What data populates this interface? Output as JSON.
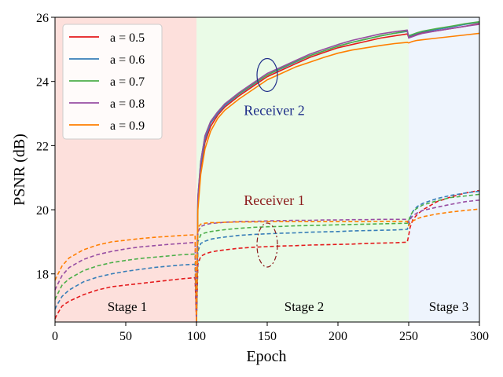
{
  "chart_data": {
    "type": "line",
    "title": "",
    "xlabel": "Epoch",
    "ylabel": "PSNR (dB)",
    "xlim": [
      0,
      300
    ],
    "ylim": [
      16.5,
      26
    ],
    "xticks": [
      0,
      50,
      100,
      150,
      200,
      250,
      300
    ],
    "yticks": [
      18,
      20,
      22,
      24,
      26
    ],
    "legend_position": "top-left",
    "stages": [
      {
        "name": "Stage 1",
        "range": [
          0,
          100
        ],
        "color": "#fde0dc"
      },
      {
        "name": "Stage 2",
        "range": [
          100,
          250
        ],
        "color": "#eafbe7"
      },
      {
        "name": "Stage 3",
        "range": [
          250,
          300
        ],
        "color": "#eef4fd"
      }
    ],
    "annotations": [
      {
        "text": "Receiver 2",
        "color": "#1f2f8a",
        "x": 150,
        "y": 23.1
      },
      {
        "text": "Receiver 1",
        "color": "#8b1a1a",
        "x": 150,
        "y": 20.3
      }
    ],
    "ellipses": [
      {
        "name": "receiver-2-ellipse",
        "cx": 150,
        "cy": 24.2,
        "color": "#1f2f8a",
        "style": "solid"
      },
      {
        "name": "receiver-1-ellipse",
        "cx": 150,
        "cy": 18.9,
        "color": "#8b1a1a",
        "style": "dashdot"
      }
    ],
    "x": [
      0,
      1,
      5,
      10,
      20,
      30,
      40,
      50,
      60,
      70,
      80,
      90,
      99,
      100,
      101,
      103,
      106,
      110,
      115,
      120,
      130,
      140,
      150,
      160,
      170,
      180,
      190,
      200,
      210,
      220,
      230,
      240,
      249,
      250,
      251,
      253,
      256,
      260,
      270,
      280,
      290,
      300
    ],
    "series": [
      {
        "name": "a = 0.5",
        "color": "#e41a1c",
        "receiver": 2,
        "values": [
          null,
          null,
          null,
          null,
          null,
          null,
          null,
          null,
          null,
          null,
          null,
          null,
          null,
          16.5,
          20.2,
          21.3,
          22.1,
          22.6,
          22.95,
          23.2,
          23.55,
          23.85,
          24.15,
          24.35,
          24.55,
          24.75,
          24.9,
          25.05,
          25.15,
          25.25,
          25.35,
          25.42,
          25.48,
          25.38,
          25.4,
          25.43,
          25.48,
          25.52,
          25.58,
          25.65,
          25.72,
          25.8
        ]
      },
      {
        "name": "a = 0.6",
        "color": "#377eb8",
        "receiver": 2,
        "values": [
          null,
          null,
          null,
          null,
          null,
          null,
          null,
          null,
          null,
          null,
          null,
          null,
          null,
          16.5,
          20.3,
          21.4,
          22.2,
          22.7,
          23.0,
          23.25,
          23.6,
          23.9,
          24.2,
          24.4,
          24.6,
          24.8,
          24.95,
          25.1,
          25.22,
          25.32,
          25.42,
          25.5,
          25.56,
          25.4,
          25.42,
          25.45,
          25.5,
          25.55,
          25.62,
          25.7,
          25.78,
          25.84
        ]
      },
      {
        "name": "a = 0.7",
        "color": "#4daf4a",
        "receiver": 2,
        "values": [
          null,
          null,
          null,
          null,
          null,
          null,
          null,
          null,
          null,
          null,
          null,
          null,
          null,
          16.5,
          20.4,
          21.5,
          22.3,
          22.75,
          23.05,
          23.3,
          23.62,
          23.92,
          24.2,
          24.42,
          24.62,
          24.8,
          24.95,
          25.1,
          25.22,
          25.32,
          25.42,
          25.5,
          25.58,
          25.42,
          25.44,
          25.47,
          25.52,
          25.57,
          25.65,
          25.72,
          25.8,
          25.86
        ]
      },
      {
        "name": "a = 0.8",
        "color": "#984ea3",
        "receiver": 2,
        "values": [
          null,
          null,
          null,
          null,
          null,
          null,
          null,
          null,
          null,
          null,
          null,
          null,
          null,
          16.5,
          20.4,
          21.5,
          22.3,
          22.75,
          23.05,
          23.3,
          23.65,
          23.95,
          24.25,
          24.45,
          24.65,
          24.85,
          25.0,
          25.15,
          25.28,
          25.38,
          25.48,
          25.55,
          25.6,
          25.35,
          25.37,
          25.4,
          25.45,
          25.5,
          25.58,
          25.65,
          25.72,
          25.78
        ]
      },
      {
        "name": "a = 0.9",
        "color": "#ff7f00",
        "receiver": 2,
        "values": [
          null,
          null,
          null,
          null,
          null,
          null,
          null,
          null,
          null,
          null,
          null,
          null,
          null,
          16.5,
          20.0,
          21.1,
          21.9,
          22.45,
          22.85,
          23.1,
          23.45,
          23.75,
          24.05,
          24.25,
          24.45,
          24.6,
          24.75,
          24.88,
          24.98,
          25.05,
          25.12,
          25.18,
          25.22,
          25.2,
          25.22,
          25.25,
          25.28,
          25.3,
          25.35,
          25.4,
          25.45,
          25.5
        ]
      },
      {
        "name": "a = 0.5",
        "color": "#e41a1c",
        "receiver": 1,
        "values": [
          16.6,
          16.7,
          17.0,
          17.15,
          17.35,
          17.5,
          17.6,
          17.65,
          17.7,
          17.75,
          17.8,
          17.85,
          17.88,
          16.5,
          18.3,
          18.55,
          18.62,
          18.68,
          18.72,
          18.75,
          18.8,
          18.83,
          18.85,
          18.87,
          18.88,
          18.9,
          18.91,
          18.92,
          18.93,
          18.95,
          18.96,
          18.97,
          18.99,
          19.2,
          19.45,
          19.7,
          19.85,
          20.0,
          20.25,
          20.4,
          20.52,
          20.6
        ]
      },
      {
        "name": "a = 0.6",
        "color": "#377eb8",
        "receiver": 1,
        "values": [
          16.9,
          17.0,
          17.3,
          17.5,
          17.75,
          17.9,
          18.0,
          18.08,
          18.14,
          18.2,
          18.24,
          18.28,
          18.3,
          16.5,
          18.7,
          18.95,
          19.02,
          19.08,
          19.12,
          19.15,
          19.2,
          19.23,
          19.25,
          19.27,
          19.28,
          19.3,
          19.31,
          19.32,
          19.34,
          19.35,
          19.36,
          19.37,
          19.39,
          19.55,
          19.75,
          19.95,
          20.1,
          20.2,
          20.35,
          20.45,
          20.52,
          20.58
        ]
      },
      {
        "name": "a = 0.7",
        "color": "#4daf4a",
        "receiver": 1,
        "values": [
          17.2,
          17.3,
          17.65,
          17.85,
          18.1,
          18.25,
          18.35,
          18.42,
          18.48,
          18.52,
          18.56,
          18.6,
          18.62,
          16.5,
          19.0,
          19.22,
          19.28,
          19.32,
          19.35,
          19.38,
          19.42,
          19.45,
          19.47,
          19.48,
          19.5,
          19.51,
          19.52,
          19.53,
          19.54,
          19.55,
          19.56,
          19.57,
          19.58,
          19.65,
          19.8,
          19.95,
          20.05,
          20.15,
          20.28,
          20.38,
          20.43,
          20.48
        ]
      },
      {
        "name": "a = 0.8",
        "color": "#984ea3",
        "receiver": 1,
        "values": [
          17.5,
          17.6,
          17.95,
          18.2,
          18.45,
          18.6,
          18.7,
          18.78,
          18.84,
          18.88,
          18.92,
          18.95,
          18.98,
          16.5,
          19.3,
          19.48,
          19.53,
          19.57,
          19.59,
          19.61,
          19.63,
          19.64,
          19.65,
          19.66,
          19.67,
          19.67,
          19.68,
          19.68,
          19.69,
          19.69,
          19.7,
          19.7,
          19.7,
          19.6,
          19.7,
          19.82,
          19.9,
          19.98,
          20.08,
          20.17,
          20.25,
          20.3
        ]
      },
      {
        "name": "a = 0.9",
        "color": "#ff7f00",
        "receiver": 1,
        "values": [
          17.8,
          17.9,
          18.25,
          18.5,
          18.75,
          18.9,
          19.0,
          19.05,
          19.1,
          19.14,
          19.17,
          19.2,
          19.22,
          16.5,
          19.45,
          19.55,
          19.58,
          19.6,
          19.6,
          19.61,
          19.62,
          19.62,
          19.63,
          19.63,
          19.63,
          19.63,
          19.63,
          19.63,
          19.63,
          19.63,
          19.64,
          19.64,
          19.64,
          19.5,
          19.58,
          19.65,
          19.72,
          19.78,
          19.87,
          19.93,
          19.98,
          20.02
        ]
      }
    ]
  }
}
